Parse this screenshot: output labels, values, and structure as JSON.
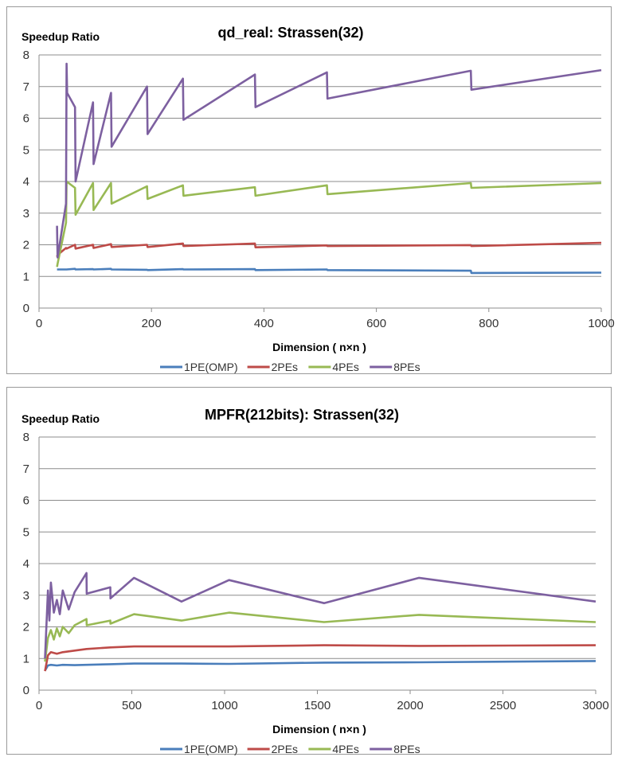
{
  "chart_data": [
    {
      "type": "line",
      "title": "qd_real: Strassen(32)",
      "ylabel": "Speedup Ratio",
      "xlabel": "Dimension ( n×n )",
      "xlim": [
        0,
        1000
      ],
      "ylim": [
        0,
        8
      ],
      "xticks": [
        0,
        200,
        400,
        600,
        800,
        1000
      ],
      "yticks": [
        0,
        1,
        2,
        3,
        4,
        5,
        6,
        7,
        8
      ],
      "grid": "horizontal",
      "legend": "bottom",
      "series": [
        {
          "name": "1PE(OMP)",
          "color": "#4a7ebb",
          "x": [
            32,
            33,
            48,
            49,
            64,
            65,
            96,
            97,
            128,
            129,
            192,
            193,
            256,
            257,
            384,
            385,
            512,
            513,
            768,
            769,
            1000
          ],
          "y": [
            1.22,
            1.22,
            1.22,
            1.22,
            1.24,
            1.22,
            1.23,
            1.22,
            1.24,
            1.22,
            1.21,
            1.2,
            1.23,
            1.22,
            1.23,
            1.2,
            1.22,
            1.2,
            1.18,
            1.11,
            1.12
          ]
        },
        {
          "name": "2PEs",
          "color": "#be4b48",
          "x": [
            32,
            33,
            48,
            49,
            64,
            65,
            96,
            97,
            128,
            129,
            192,
            193,
            256,
            257,
            384,
            385,
            512,
            513,
            768,
            769,
            1000
          ],
          "y": [
            1.62,
            1.68,
            1.9,
            1.88,
            2.0,
            1.88,
            2.0,
            1.9,
            2.02,
            1.93,
            2.0,
            1.93,
            2.04,
            1.96,
            2.04,
            1.92,
            1.98,
            1.96,
            1.99,
            1.96,
            2.06
          ]
        },
        {
          "name": "4PEs",
          "color": "#98b954",
          "x": [
            32,
            33,
            48,
            49,
            64,
            65,
            96,
            97,
            128,
            129,
            192,
            193,
            256,
            257,
            384,
            385,
            512,
            513,
            768,
            769,
            1000
          ],
          "y": [
            1.3,
            1.4,
            2.7,
            4.0,
            3.8,
            2.95,
            3.95,
            3.1,
            3.95,
            3.3,
            3.85,
            3.45,
            3.88,
            3.55,
            3.82,
            3.55,
            3.88,
            3.6,
            3.95,
            3.8,
            3.95
          ]
        },
        {
          "name": "8PEs",
          "color": "#7d60a0",
          "x": [
            32,
            33,
            48,
            49,
            50,
            64,
            65,
            96,
            97,
            128,
            129,
            192,
            193,
            256,
            257,
            384,
            385,
            512,
            513,
            768,
            769,
            1000
          ],
          "y": [
            2.6,
            1.6,
            3.3,
            7.72,
            6.8,
            6.35,
            4.0,
            6.5,
            4.55,
            6.8,
            5.1,
            7.0,
            5.5,
            7.25,
            5.95,
            7.38,
            6.35,
            7.45,
            6.62,
            7.5,
            6.9,
            7.52
          ]
        }
      ]
    },
    {
      "type": "line",
      "title": "MPFR(212bits): Strassen(32)",
      "ylabel": "Speedup Ratio",
      "xlabel": "Dimension ( n×n )",
      "xlim": [
        0,
        3000
      ],
      "ylim": [
        0,
        8
      ],
      "xticks": [
        0,
        500,
        1000,
        1500,
        2000,
        2500,
        3000
      ],
      "yticks": [
        0,
        1,
        2,
        3,
        4,
        5,
        6,
        7,
        8
      ],
      "grid": "horizontal",
      "legend": "bottom",
      "series": [
        {
          "name": "1PE(OMP)",
          "color": "#4a7ebb",
          "x": [
            32,
            48,
            64,
            96,
            128,
            192,
            256,
            384,
            512,
            768,
            1024,
            1536,
            2048,
            3000
          ],
          "y": [
            0.62,
            0.78,
            0.8,
            0.78,
            0.8,
            0.79,
            0.8,
            0.82,
            0.84,
            0.84,
            0.83,
            0.87,
            0.88,
            0.92
          ]
        },
        {
          "name": "2PEs",
          "color": "#be4b48",
          "x": [
            32,
            48,
            64,
            96,
            128,
            192,
            256,
            384,
            512,
            768,
            1024,
            1536,
            2048,
            3000
          ],
          "y": [
            0.6,
            1.1,
            1.2,
            1.15,
            1.2,
            1.25,
            1.3,
            1.35,
            1.38,
            1.38,
            1.38,
            1.42,
            1.4,
            1.42
          ]
        },
        {
          "name": "4PEs",
          "color": "#98b954",
          "x": [
            32,
            48,
            64,
            80,
            96,
            112,
            128,
            160,
            192,
            256,
            257,
            384,
            385,
            512,
            768,
            1024,
            1536,
            2048,
            3000
          ],
          "y": [
            0.9,
            1.65,
            1.9,
            1.6,
            1.95,
            1.7,
            2.0,
            1.8,
            2.05,
            2.25,
            2.05,
            2.2,
            2.1,
            2.4,
            2.2,
            2.45,
            2.15,
            2.38,
            2.15
          ]
        },
        {
          "name": "8PEs",
          "color": "#7d60a0",
          "x": [
            32,
            48,
            56,
            64,
            80,
            96,
            112,
            128,
            160,
            192,
            256,
            257,
            384,
            385,
            512,
            768,
            1024,
            1536,
            2048,
            3000
          ],
          "y": [
            1.0,
            3.15,
            2.2,
            3.4,
            2.45,
            2.85,
            2.4,
            3.15,
            2.55,
            3.1,
            3.7,
            3.05,
            3.25,
            2.9,
            3.55,
            2.8,
            3.48,
            2.75,
            3.55,
            2.8
          ]
        }
      ]
    }
  ]
}
